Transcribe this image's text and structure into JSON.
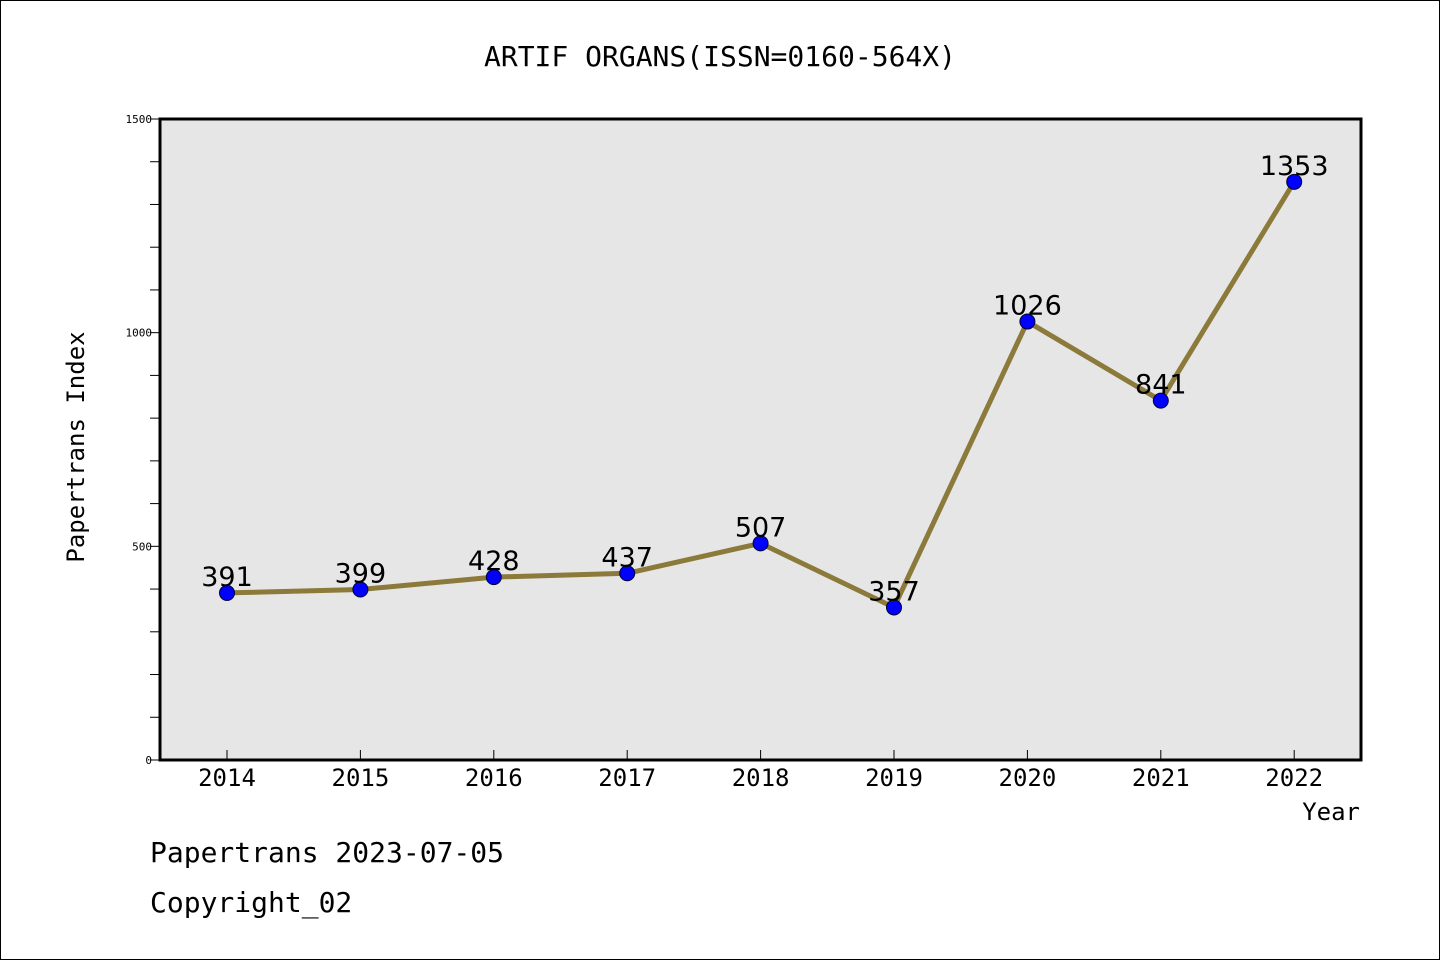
{
  "chart_data": {
    "type": "line",
    "title": "ARTIF ORGANS(ISSN=0160-564X)",
    "xlabel": "Year",
    "ylabel": "Papertrans Index",
    "categories": [
      "2014",
      "2015",
      "2016",
      "2017",
      "2018",
      "2019",
      "2020",
      "2021",
      "2022"
    ],
    "series": [
      {
        "values": [
          391,
          399,
          428,
          437,
          507,
          357,
          1026,
          841,
          1353
        ]
      }
    ],
    "ylim": [
      0,
      1500
    ],
    "yticks": [
      0,
      500,
      1000,
      1500
    ],
    "data_labels": [
      "391",
      "399",
      "428",
      "437",
      "507",
      "357",
      "1026",
      "841",
      "1353"
    ],
    "grid": false,
    "legend": "none",
    "colors": {
      "line": "#8b7a3a",
      "marker": "#0000ff",
      "plot_background": "#e6e6e6",
      "page_background": "#ffffff"
    }
  },
  "footer": {
    "date_line": "Papertrans 2023-07-05",
    "copyright": "Copyright_02"
  }
}
